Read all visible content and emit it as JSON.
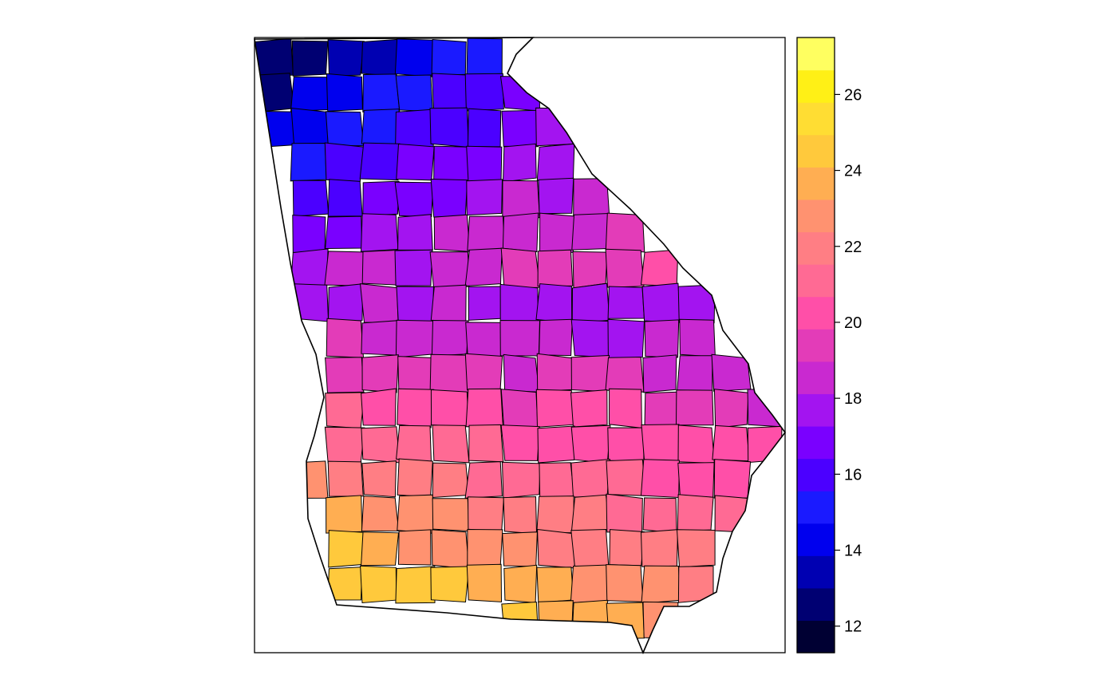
{
  "chart_data": {
    "type": "heatmap",
    "title": "",
    "xlabel": "",
    "ylabel": "",
    "legend_position": "right",
    "legend": {
      "breaks": [
        11.5,
        12.5,
        13.0,
        13.5,
        14.5,
        15.0,
        15.5,
        16.5,
        17.0,
        17.5,
        18.5,
        19.0,
        19.5,
        20.5,
        21.0,
        21.5,
        22.5,
        23.0,
        23.5,
        24.5,
        25.0,
        25.5,
        26.5,
        27.0,
        27.5
      ],
      "colors": [
        "#000033",
        "#000066",
        "#00009A",
        "#0000CD",
        "#0000FF",
        "#1C00FF",
        "#3600FF",
        "#5000FF",
        "#6A00FF",
        "#8400F6",
        "#9C1CE3",
        "#B325D4",
        "#C72DC8",
        "#D935C0",
        "#E83EB5",
        "#F547A9",
        "#FF519E",
        "#FF5C93",
        "#FF6787",
        "#FF717A",
        "#FF7C6E",
        "#FF8762",
        "#FF9256",
        "#FFB347",
        "#FFD234",
        "#FFE91F",
        "#FFFF60"
      ],
      "color_list": [
        "#000033",
        "#000072",
        "#0000B2",
        "#0000EE",
        "#1A1AFF",
        "#4B00FF",
        "#7A00FF",
        "#A314F0",
        "#C929D0",
        "#E33CB8",
        "#FF4FA8",
        "#FF6A94",
        "#FF7E84",
        "#FF9270",
        "#FFAE52",
        "#FFC93C",
        "#FFDD33",
        "#FFF016",
        "#FFFF60"
      ],
      "bin_edges": [
        11.3,
        12.3,
        13.3,
        14.3,
        15.3,
        16.3,
        17.3,
        18.3,
        19.3,
        20.3,
        21.3,
        22.3,
        23.3,
        24.3,
        25.3,
        26.3,
        27.3
      ],
      "ticks": [
        12,
        14,
        16,
        18,
        20,
        22,
        24,
        26
      ],
      "tick_labels": [
        "12",
        "14",
        "16",
        "18",
        "20",
        "22",
        "24",
        "26"
      ],
      "range": [
        11.3,
        27.5
      ]
    }
  }
}
